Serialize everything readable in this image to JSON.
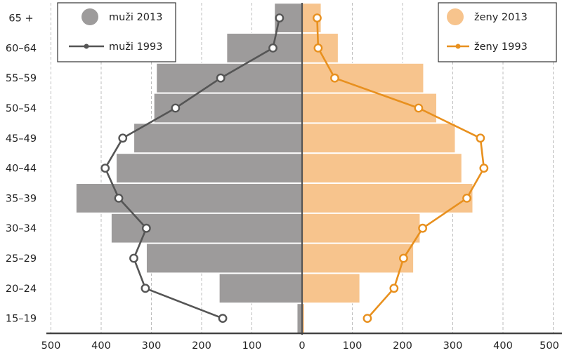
{
  "chart_data": {
    "type": "bar",
    "subtype": "population-pyramid",
    "categories": [
      "15–19",
      "20–24",
      "25–29",
      "30–34",
      "35–39",
      "40–44",
      "45–49",
      "50–54",
      "55–59",
      "60–64",
      "65 +"
    ],
    "xlim": [
      -500,
      500
    ],
    "xticks": [
      -500,
      -400,
      -300,
      -200,
      -100,
      0,
      100,
      200,
      300,
      400,
      500
    ],
    "xtick_labels": [
      "500",
      "400",
      "300",
      "200",
      "100",
      "0",
      "100",
      "200",
      "300",
      "400",
      "500"
    ],
    "grid": "vertical dashed",
    "series": [
      {
        "name": "muži 2013",
        "kind": "bar",
        "side": "left",
        "color": "#9d9b9b",
        "values": [
          10,
          165,
          310,
          380,
          450,
          370,
          335,
          295,
          290,
          150,
          55
        ]
      },
      {
        "name": "ženy 2013",
        "kind": "bar",
        "side": "right",
        "color": "#f7c48d",
        "values": [
          5,
          115,
          222,
          235,
          340,
          318,
          305,
          268,
          242,
          72,
          38
        ]
      },
      {
        "name": "muži 1993",
        "kind": "line",
        "side": "left",
        "color": "#555555",
        "values": [
          158,
          312,
          335,
          310,
          365,
          392,
          357,
          252,
          162,
          58,
          45
        ]
      },
      {
        "name": "ženy 1993",
        "kind": "line",
        "side": "right",
        "color": "#e8901e",
        "values": [
          130,
          183,
          202,
          240,
          328,
          362,
          355,
          232,
          65,
          32,
          30
        ]
      }
    ],
    "legend": {
      "left_position": "top-left",
      "right_position": "top-right"
    }
  }
}
